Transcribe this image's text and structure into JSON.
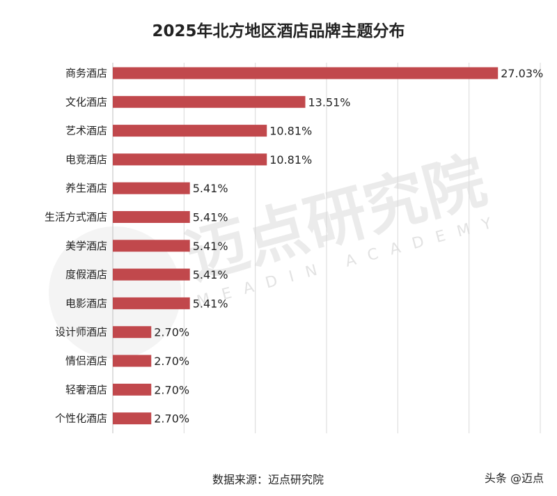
{
  "chart_data": {
    "type": "bar",
    "orientation": "horizontal",
    "title": "2025年北方地区酒店品牌主题分布",
    "categories": [
      "商务酒店",
      "文化酒店",
      "艺术酒店",
      "电竞酒店",
      "养生酒店",
      "生活方式酒店",
      "美学酒店",
      "度假酒店",
      "电影酒店",
      "设计师酒店",
      "情侣酒店",
      "轻奢酒店",
      "个性化酒店"
    ],
    "values": [
      27.03,
      13.51,
      10.81,
      10.81,
      5.41,
      5.41,
      5.41,
      5.41,
      5.41,
      2.7,
      2.7,
      2.7,
      2.7
    ],
    "value_labels": [
      "27.03%",
      "13.51%",
      "10.81%",
      "10.81%",
      "5.41%",
      "5.41%",
      "5.41%",
      "5.41%",
      "5.41%",
      "2.70%",
      "2.70%",
      "2.70%",
      "2.70%"
    ],
    "xlim": [
      0,
      30
    ],
    "grid": true,
    "legend": "none",
    "bar_color": "#c1484c"
  },
  "source_text": "数据来源：迈点研究院",
  "credit_text": "头条 @迈点",
  "watermark": {
    "cn": "迈点研究院",
    "en": "MEADIN ACADEMY",
    "logo": "meadin-logo-icon"
  }
}
